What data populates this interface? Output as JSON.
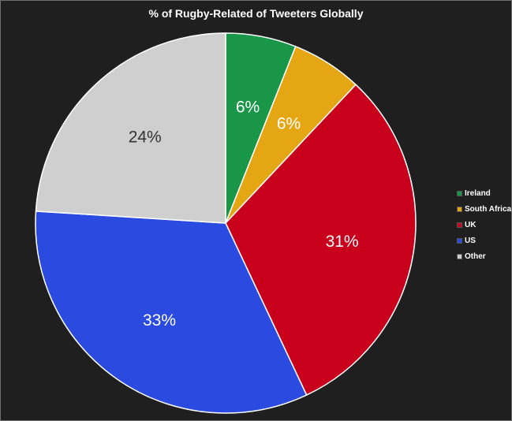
{
  "chart_data": {
    "type": "pie",
    "title": "% of Rugby-Related of Tweeters Globally",
    "categories": [
      "Ireland",
      "South Africa",
      "UK",
      "US",
      "Other"
    ],
    "values": [
      6,
      6,
      31,
      33,
      24
    ],
    "data_labels": [
      "6%",
      "6%",
      "31%",
      "33%",
      "24%"
    ],
    "colors": [
      "#1a9648",
      "#e5a614",
      "#c9001c",
      "#2a4ae0",
      "#cfcfcf"
    ],
    "label_colors": [
      "#ffffff",
      "#ffffff",
      "#ffffff",
      "#ffffff",
      "#333333"
    ],
    "legend": "right",
    "background": "#1f1f1f"
  }
}
